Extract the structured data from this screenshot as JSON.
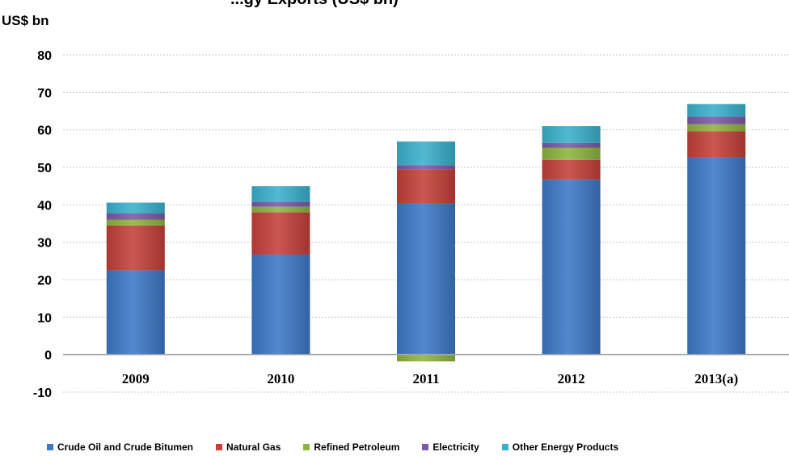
{
  "chart_data": {
    "type": "bar",
    "stacked": true,
    "title": "...gy Exports (US$ bn)",
    "ylabel": "US$ bn",
    "xlabel": "",
    "ylim": [
      -10,
      80
    ],
    "yticks": [
      80,
      70,
      60,
      50,
      40,
      30,
      20,
      10,
      0,
      -10
    ],
    "grid": true,
    "legend_position": "bottom",
    "categories": [
      "2009",
      "2010",
      "2011",
      "2012",
      "2013(a)"
    ],
    "series": [
      {
        "name": "Crude Oil and Crude Bitumen",
        "color": "#3d78c7",
        "values": [
          22.5,
          26.7,
          40.5,
          46.7,
          52.8
        ]
      },
      {
        "name": "Natural Gas",
        "color": "#c4403a",
        "values": [
          12.0,
          11.3,
          9.0,
          5.3,
          6.8
        ]
      },
      {
        "name": "Refined Petroleum",
        "color": "#8db43f",
        "values": [
          1.5,
          1.5,
          -1.8,
          3.2,
          1.9
        ]
      },
      {
        "name": "Electricity",
        "color": "#7b5aa6",
        "values": [
          1.7,
          1.3,
          1.1,
          1.3,
          2.0
        ]
      },
      {
        "name": "Other Energy Products",
        "color": "#3bb0cc",
        "values": [
          2.9,
          4.2,
          6.3,
          4.5,
          3.4
        ]
      }
    ]
  }
}
